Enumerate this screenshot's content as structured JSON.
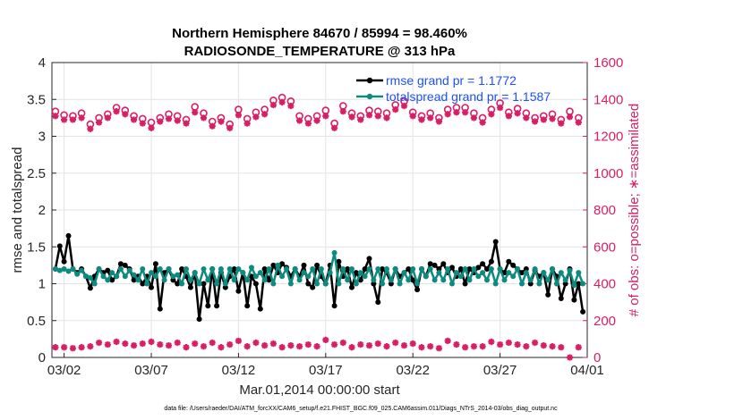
{
  "chart_data": {
    "type": "line",
    "title": "Northern Hemisphere 84670 / 85994 = 98.460%",
    "subtitle": "RADIOSONDE_TEMPERATURE @ 313 hPa",
    "xlabel": "Mar.01,2014 00:00:00 start",
    "ylabel_left": "rmse and totalspread",
    "ylabel_right": "# of obs: o=possible; ∗=assimilated",
    "footnote": "data file: /Users/raeder/DAI/ATM_forcXX/CAM6_setup/f.e21.FHIST_BGC.f09_025.CAM6assim.011/Diags_NTrS_2014-03/obs_diag_output.nc",
    "x_ticks": [
      {
        "day": 2,
        "label": "03/02"
      },
      {
        "day": 7,
        "label": "03/07"
      },
      {
        "day": 12,
        "label": "03/12"
      },
      {
        "day": 17,
        "label": "03/17"
      },
      {
        "day": 22,
        "label": "03/22"
      },
      {
        "day": 27,
        "label": "03/27"
      },
      {
        "day": 32,
        "label": "04/01"
      }
    ],
    "xlim": [
      1.3,
      32.0
    ],
    "ylim_left": [
      0,
      4
    ],
    "y_ticks_left": [
      "0",
      "0.5",
      "1",
      "1.5",
      "2",
      "2.5",
      "3",
      "3.5",
      "4"
    ],
    "ylim_right": [
      0,
      1600
    ],
    "y_ticks_right": [
      "0",
      "200",
      "400",
      "600",
      "800",
      "1000",
      "1200",
      "1400",
      "1600"
    ],
    "grid": true,
    "legend_position": "top-right",
    "colors": {
      "rmse": "#000000",
      "spread": "#0e8a7e",
      "obs": "#d81e64",
      "legend_text": "#1f4fff"
    },
    "series": [
      {
        "name": "rmse grand pr = 1.1772",
        "axis": "left",
        "x": [
          1.5,
          1.75,
          2.0,
          2.25,
          2.5,
          2.75,
          3.0,
          3.25,
          3.5,
          3.75,
          4.0,
          4.25,
          4.5,
          4.75,
          5.0,
          5.25,
          5.5,
          5.75,
          6.0,
          6.25,
          6.5,
          6.75,
          7.0,
          7.25,
          7.5,
          7.75,
          8.0,
          8.25,
          8.5,
          8.75,
          9.0,
          9.25,
          9.5,
          9.75,
          10.0,
          10.25,
          10.5,
          10.75,
          11.0,
          11.25,
          11.5,
          11.75,
          12.0,
          12.25,
          12.5,
          12.75,
          13.0,
          13.25,
          13.5,
          13.75,
          14.0,
          14.25,
          14.5,
          14.75,
          15.0,
          15.25,
          15.5,
          15.75,
          16.0,
          16.25,
          16.5,
          16.75,
          17.0,
          17.25,
          17.5,
          17.75,
          18.0,
          18.25,
          18.5,
          18.75,
          19.0,
          19.25,
          19.5,
          19.75,
          20.0,
          20.25,
          20.5,
          20.75,
          21.0,
          21.25,
          21.5,
          21.75,
          22.0,
          22.25,
          22.5,
          22.75,
          23.0,
          23.25,
          23.5,
          23.75,
          24.0,
          24.25,
          24.5,
          24.75,
          25.0,
          25.25,
          25.5,
          25.75,
          26.0,
          26.25,
          26.5,
          26.75,
          27.0,
          27.25,
          27.5,
          27.75,
          28.0,
          28.25,
          28.5,
          28.75,
          29.0,
          29.25,
          29.5,
          29.75,
          30.0,
          30.25,
          30.5,
          30.75,
          31.0,
          31.25,
          31.5,
          31.75
        ],
        "values": [
          1.2,
          1.51,
          1.3,
          1.65,
          1.2,
          1.15,
          1.2,
          1.1,
          0.94,
          1.1,
          1.2,
          1.15,
          1.18,
          1.05,
          1.1,
          1.27,
          1.25,
          1.2,
          1.05,
          1.1,
          1.0,
          1.1,
          0.95,
          1.27,
          0.66,
          1.15,
          1.2,
          1.05,
          1.0,
          1.2,
          1.1,
          0.95,
          1.15,
          0.52,
          1.0,
          0.7,
          1.2,
          0.7,
          1.15,
          0.95,
          1.1,
          1.2,
          0.9,
          1.15,
          0.7,
          1.1,
          1.0,
          0.66,
          1.2,
          1.05,
          1.25,
          1.15,
          1.27,
          1.22,
          1.1,
          1.2,
          1.1,
          1.25,
          1.0,
          0.95,
          1.25,
          1.1,
          1.0,
          1.25,
          0.7,
          1.3,
          1.1,
          1.2,
          0.95,
          1.15,
          1.05,
          1.2,
          1.34,
          1.0,
          0.75,
          1.2,
          1.15,
          1.0,
          1.2,
          1.1,
          1.15,
          1.2,
          1.05,
          0.92,
          1.2,
          1.1,
          1.27,
          1.25,
          1.2,
          1.27,
          1.15,
          1.22,
          1.1,
          1.2,
          1.0,
          1.2,
          1.15,
          1.22,
          1.27,
          1.2,
          1.3,
          1.57,
          1.2,
          1.15,
          1.3,
          1.25,
          1.2,
          1.15,
          1.2,
          1.0,
          1.18,
          1.1,
          1.15,
          0.85,
          1.2,
          1.1,
          0.8,
          1.0,
          1.2,
          0.78,
          1.0,
          0.62
        ],
        "marker": "filled-circle"
      },
      {
        "name": "totalspread grand pr = 1.1587",
        "axis": "left",
        "x": [
          1.5,
          1.75,
          2.0,
          2.25,
          2.5,
          2.75,
          3.0,
          3.25,
          3.5,
          3.75,
          4.0,
          4.25,
          4.5,
          4.75,
          5.0,
          5.25,
          5.5,
          5.75,
          6.0,
          6.25,
          6.5,
          6.75,
          7.0,
          7.25,
          7.5,
          7.75,
          8.0,
          8.25,
          8.5,
          8.75,
          9.0,
          9.25,
          9.5,
          9.75,
          10.0,
          10.25,
          10.5,
          10.75,
          11.0,
          11.25,
          11.5,
          11.75,
          12.0,
          12.25,
          12.5,
          12.75,
          13.0,
          13.25,
          13.5,
          13.75,
          14.0,
          14.25,
          14.5,
          14.75,
          15.0,
          15.25,
          15.5,
          15.75,
          16.0,
          16.25,
          16.5,
          16.75,
          17.0,
          17.25,
          17.5,
          17.75,
          18.0,
          18.25,
          18.5,
          18.75,
          19.0,
          19.25,
          19.5,
          19.75,
          20.0,
          20.25,
          20.5,
          20.75,
          21.0,
          21.25,
          21.5,
          21.75,
          22.0,
          22.25,
          22.5,
          22.75,
          23.0,
          23.25,
          23.5,
          23.75,
          24.0,
          24.25,
          24.5,
          24.75,
          25.0,
          25.25,
          25.5,
          25.75,
          26.0,
          26.25,
          26.5,
          26.75,
          27.0,
          27.25,
          27.5,
          27.75,
          28.0,
          28.25,
          28.5,
          28.75,
          29.0,
          29.25,
          29.5,
          29.75,
          30.0,
          30.25,
          30.5,
          30.75,
          31.0,
          31.25,
          31.5,
          31.75
        ],
        "values": [
          1.2,
          1.18,
          1.2,
          1.17,
          1.2,
          1.13,
          1.18,
          1.1,
          1.08,
          1.0,
          1.2,
          1.1,
          1.05,
          1.15,
          1.1,
          1.2,
          1.1,
          1.18,
          1.12,
          1.05,
          1.2,
          1.0,
          1.15,
          1.1,
          1.2,
          1.05,
          1.2,
          1.1,
          1.12,
          1.0,
          1.2,
          1.05,
          1.15,
          1.0,
          1.2,
          1.05,
          1.2,
          1.0,
          1.2,
          1.0,
          1.2,
          1.05,
          1.2,
          1.15,
          1.05,
          1.22,
          1.1,
          1.15,
          1.05,
          1.2,
          1.0,
          1.25,
          1.1,
          1.2,
          1.0,
          1.2,
          1.05,
          1.15,
          1.1,
          1.2,
          1.0,
          1.2,
          1.0,
          1.15,
          1.42,
          1.0,
          1.2,
          1.05,
          1.2,
          1.0,
          1.15,
          1.1,
          1.2,
          1.05,
          1.2,
          1.0,
          1.2,
          1.05,
          1.2,
          1.0,
          1.15,
          1.05,
          1.2,
          1.0,
          1.2,
          1.1,
          1.2,
          1.05,
          1.15,
          1.05,
          1.2,
          1.0,
          1.15,
          1.1,
          1.2,
          1.05,
          1.2,
          1.1,
          1.15,
          1.05,
          1.2,
          1.0,
          1.2,
          1.05,
          1.15,
          1.1,
          1.2,
          1.0,
          1.15,
          1.05,
          1.2,
          1.0,
          1.15,
          1.05,
          1.2,
          1.0,
          1.15,
          1.05,
          1.18,
          0.98,
          1.15,
          1.0
        ],
        "marker": "filled-circle"
      },
      {
        "name": "possible obs",
        "axis": "right",
        "x": [
          1.5,
          2.0,
          2.5,
          3.0,
          3.5,
          4.0,
          4.5,
          5.0,
          5.5,
          6.0,
          6.5,
          7.0,
          7.5,
          8.0,
          8.5,
          9.0,
          9.5,
          10.0,
          10.5,
          11.0,
          11.5,
          12.0,
          12.5,
          13.0,
          13.5,
          14.0,
          14.5,
          15.0,
          15.5,
          16.0,
          16.5,
          17.0,
          17.5,
          18.0,
          18.5,
          19.0,
          19.5,
          20.0,
          20.5,
          21.0,
          21.5,
          22.0,
          22.5,
          23.0,
          23.5,
          24.0,
          24.5,
          25.0,
          25.5,
          26.0,
          26.5,
          27.0,
          27.5,
          28.0,
          28.5,
          29.0,
          29.5,
          30.0,
          30.5,
          31.0,
          31.5
        ],
        "values": [
          1335,
          1315,
          1310,
          1325,
          1265,
          1300,
          1320,
          1355,
          1340,
          1310,
          1295,
          1275,
          1300,
          1320,
          1310,
          1290,
          1360,
          1325,
          1280,
          1300,
          1265,
          1345,
          1295,
          1330,
          1345,
          1395,
          1410,
          1390,
          1310,
          1295,
          1310,
          1340,
          1270,
          1365,
          1325,
          1310,
          1340,
          1335,
          1325,
          1370,
          1390,
          1330,
          1310,
          1325,
          1300,
          1345,
          1355,
          1355,
          1325,
          1300,
          1345,
          1380,
          1330,
          1350,
          1325,
          1300,
          1310,
          1320,
          1290,
          1335,
          1300
        ],
        "marker": "open-circle"
      },
      {
        "name": "assimilated obs",
        "axis": "right",
        "x": [
          1.5,
          2.0,
          2.5,
          3.0,
          3.5,
          4.0,
          4.5,
          5.0,
          5.5,
          6.0,
          6.5,
          7.0,
          7.5,
          8.0,
          8.5,
          9.0,
          9.5,
          10.0,
          10.5,
          11.0,
          11.5,
          12.0,
          12.5,
          13.0,
          13.5,
          14.0,
          14.5,
          15.0,
          15.5,
          16.0,
          16.5,
          17.0,
          17.5,
          18.0,
          18.5,
          19.0,
          19.5,
          20.0,
          20.5,
          21.0,
          21.5,
          22.0,
          22.5,
          23.0,
          23.5,
          24.0,
          24.5,
          25.0,
          25.5,
          26.0,
          26.5,
          27.0,
          27.5,
          28.0,
          28.5,
          29.0,
          29.5,
          30.0,
          30.5,
          31.0,
          31.5
        ],
        "values": [
          1310,
          1290,
          1290,
          1300,
          1240,
          1275,
          1300,
          1335,
          1320,
          1290,
          1270,
          1245,
          1280,
          1295,
          1285,
          1270,
          1330,
          1300,
          1255,
          1280,
          1245,
          1315,
          1270,
          1305,
          1320,
          1370,
          1385,
          1365,
          1285,
          1270,
          1285,
          1310,
          1245,
          1335,
          1305,
          1290,
          1315,
          1310,
          1300,
          1345,
          1365,
          1310,
          1290,
          1300,
          1280,
          1320,
          1330,
          1330,
          1300,
          1275,
          1320,
          1355,
          1310,
          1325,
          1300,
          1280,
          1290,
          1295,
          1270,
          1305,
          1275
        ],
        "marker": "asterisk"
      },
      {
        "name": "assimilated obs (lower)",
        "axis": "right",
        "x": [
          1.5,
          2.0,
          2.5,
          3.0,
          3.5,
          4.0,
          4.5,
          5.0,
          5.5,
          6.0,
          6.5,
          7.0,
          7.5,
          8.0,
          8.5,
          9.0,
          9.5,
          10.0,
          10.5,
          11.0,
          11.5,
          12.0,
          12.5,
          13.0,
          13.5,
          14.0,
          14.5,
          15.0,
          15.5,
          16.0,
          16.5,
          17.0,
          17.5,
          18.0,
          18.5,
          19.0,
          19.5,
          20.0,
          20.5,
          21.0,
          21.5,
          22.0,
          22.5,
          23.0,
          23.5,
          24.0,
          24.5,
          25.0,
          25.5,
          26.0,
          26.5,
          27.0,
          27.5,
          28.0,
          28.5,
          29.0,
          29.5,
          30.0,
          30.5,
          31.0,
          31.5
        ],
        "values": [
          55,
          55,
          50,
          55,
          60,
          80,
          70,
          85,
          75,
          65,
          75,
          85,
          70,
          65,
          80,
          55,
          75,
          60,
          80,
          55,
          70,
          90,
          60,
          80,
          65,
          75,
          55,
          65,
          60,
          70,
          60,
          95,
          70,
          80,
          55,
          70,
          65,
          75,
          60,
          80,
          65,
          75,
          55,
          60,
          50,
          90,
          70,
          55,
          60,
          60,
          85,
          70,
          80,
          70,
          60,
          80,
          65,
          60,
          55,
          0,
          55
        ],
        "marker": "asterisk"
      }
    ]
  }
}
